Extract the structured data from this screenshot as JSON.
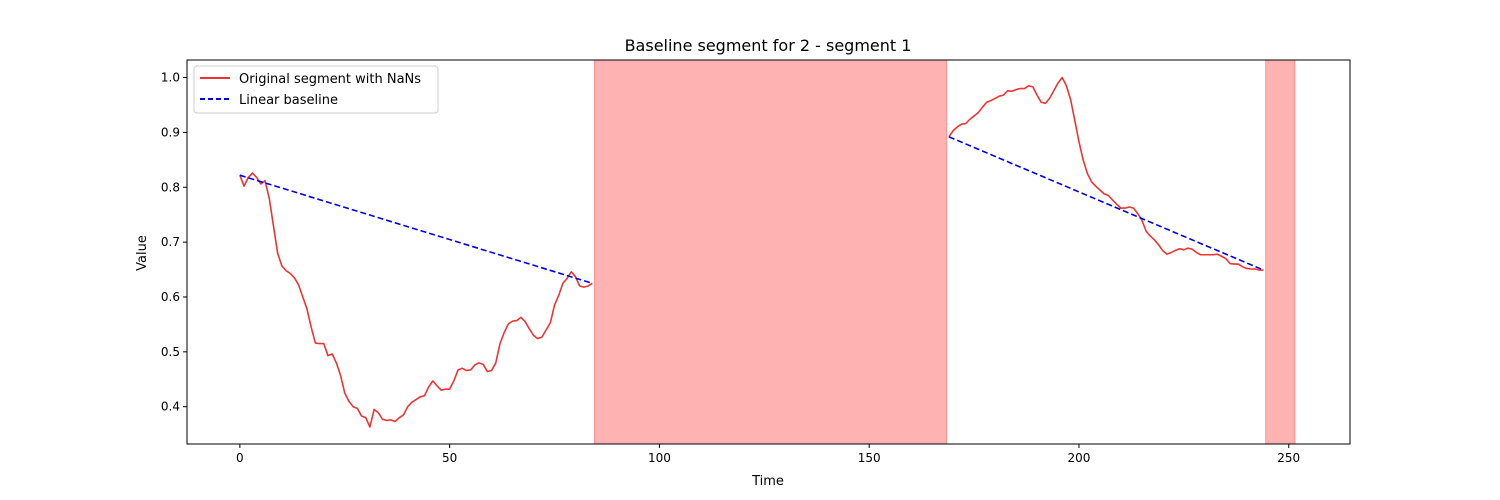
{
  "chart_data": {
    "type": "line",
    "title": "Baseline segment for 2 - segment 1",
    "xlabel": "Time",
    "ylabel": "Value",
    "xlim": [
      -12.6,
      264.6
    ],
    "ylim": [
      0.332,
      1.032
    ],
    "xticks": [
      0,
      50,
      100,
      150,
      200,
      250
    ],
    "yticks": [
      0.4,
      0.5,
      0.6,
      0.7,
      0.8,
      0.9,
      1.0
    ],
    "grid": false,
    "legend_position": "top-left",
    "nan_regions": [
      [
        84.5,
        168.5
      ],
      [
        244.5,
        251.5
      ]
    ],
    "nan_color": "#ff0000",
    "series": [
      {
        "name": "Original segment with NaNs",
        "color": "#ee3333",
        "style": "solid",
        "segments": [
          {
            "x": [
              0,
              1,
              2,
              3,
              4,
              5,
              6,
              7,
              8,
              9,
              10,
              11,
              12,
              13,
              14,
              15,
              16,
              17,
              18,
              19,
              20,
              21,
              22,
              23,
              24,
              25,
              26,
              27,
              28,
              29,
              30,
              31,
              32,
              33,
              34,
              35,
              36,
              37,
              38,
              39,
              40,
              41,
              42,
              43,
              44,
              45,
              46,
              47,
              48,
              49,
              50,
              51,
              52,
              53,
              54,
              55,
              56,
              57,
              58,
              59,
              60,
              61,
              62,
              63,
              64,
              65,
              66,
              67,
              68,
              69,
              70,
              71,
              72,
              73,
              74,
              75,
              76,
              77,
              78,
              79,
              80,
              81,
              82,
              83,
              84
            ],
            "y": [
              0.822,
              0.802,
              0.818,
              0.826,
              0.818,
              0.806,
              0.812,
              0.78,
              0.73,
              0.68,
              0.657,
              0.648,
              0.643,
              0.635,
              0.622,
              0.6,
              0.578,
              0.545,
              0.516,
              0.515,
              0.515,
              0.493,
              0.496,
              0.48,
              0.457,
              0.425,
              0.41,
              0.4,
              0.397,
              0.383,
              0.38,
              0.363,
              0.395,
              0.389,
              0.377,
              0.375,
              0.376,
              0.373,
              0.38,
              0.385,
              0.4,
              0.408,
              0.413,
              0.418,
              0.42,
              0.436,
              0.447,
              0.438,
              0.43,
              0.432,
              0.432,
              0.447,
              0.467,
              0.47,
              0.466,
              0.467,
              0.476,
              0.48,
              0.477,
              0.464,
              0.466,
              0.48,
              0.515,
              0.535,
              0.551,
              0.556,
              0.557,
              0.563,
              0.555,
              0.542,
              0.53,
              0.524,
              0.527,
              0.54,
              0.553,
              0.585,
              0.603,
              0.625,
              0.634,
              0.646,
              0.637,
              0.62,
              0.618,
              0.62,
              0.625
            ]
          },
          {
            "x": [
              169,
              170,
              171,
              172,
              173,
              174,
              175,
              176,
              177,
              178,
              179,
              180,
              181,
              182,
              183,
              184,
              185,
              186,
              187,
              188,
              189,
              190,
              191,
              192,
              193,
              194,
              195,
              196,
              197,
              198,
              199,
              200,
              201,
              202,
              203,
              204,
              205,
              206,
              207,
              208,
              209,
              210,
              211,
              212,
              213,
              214,
              215,
              216,
              217,
              218,
              219,
              220,
              221,
              222,
              223,
              224,
              225,
              226,
              227,
              228,
              229,
              230,
              231,
              232,
              233,
              234,
              235,
              236,
              237,
              238,
              239,
              240,
              241,
              242,
              243,
              244
            ],
            "y": [
              0.892,
              0.903,
              0.91,
              0.915,
              0.916,
              0.924,
              0.93,
              0.936,
              0.946,
              0.955,
              0.958,
              0.962,
              0.966,
              0.968,
              0.976,
              0.975,
              0.978,
              0.98,
              0.98,
              0.985,
              0.983,
              0.968,
              0.955,
              0.953,
              0.962,
              0.976,
              0.99,
              1.0,
              0.985,
              0.96,
              0.922,
              0.883,
              0.85,
              0.825,
              0.81,
              0.802,
              0.795,
              0.788,
              0.785,
              0.777,
              0.769,
              0.762,
              0.762,
              0.764,
              0.762,
              0.752,
              0.74,
              0.72,
              0.711,
              0.704,
              0.695,
              0.684,
              0.678,
              0.681,
              0.685,
              0.688,
              0.686,
              0.689,
              0.687,
              0.681,
              0.677,
              0.677,
              0.677,
              0.677,
              0.678,
              0.674,
              0.67,
              0.661,
              0.66,
              0.66,
              0.655,
              0.652,
              0.651,
              0.651,
              0.649,
              0.649
            ]
          }
        ]
      },
      {
        "name": "Linear baseline",
        "color": "#0000ee",
        "style": "dashed",
        "segments": [
          {
            "x": [
              0,
              84
            ],
            "y": [
              0.822,
              0.625
            ]
          },
          {
            "x": [
              169,
              244
            ],
            "y": [
              0.892,
              0.649
            ]
          }
        ]
      }
    ]
  }
}
